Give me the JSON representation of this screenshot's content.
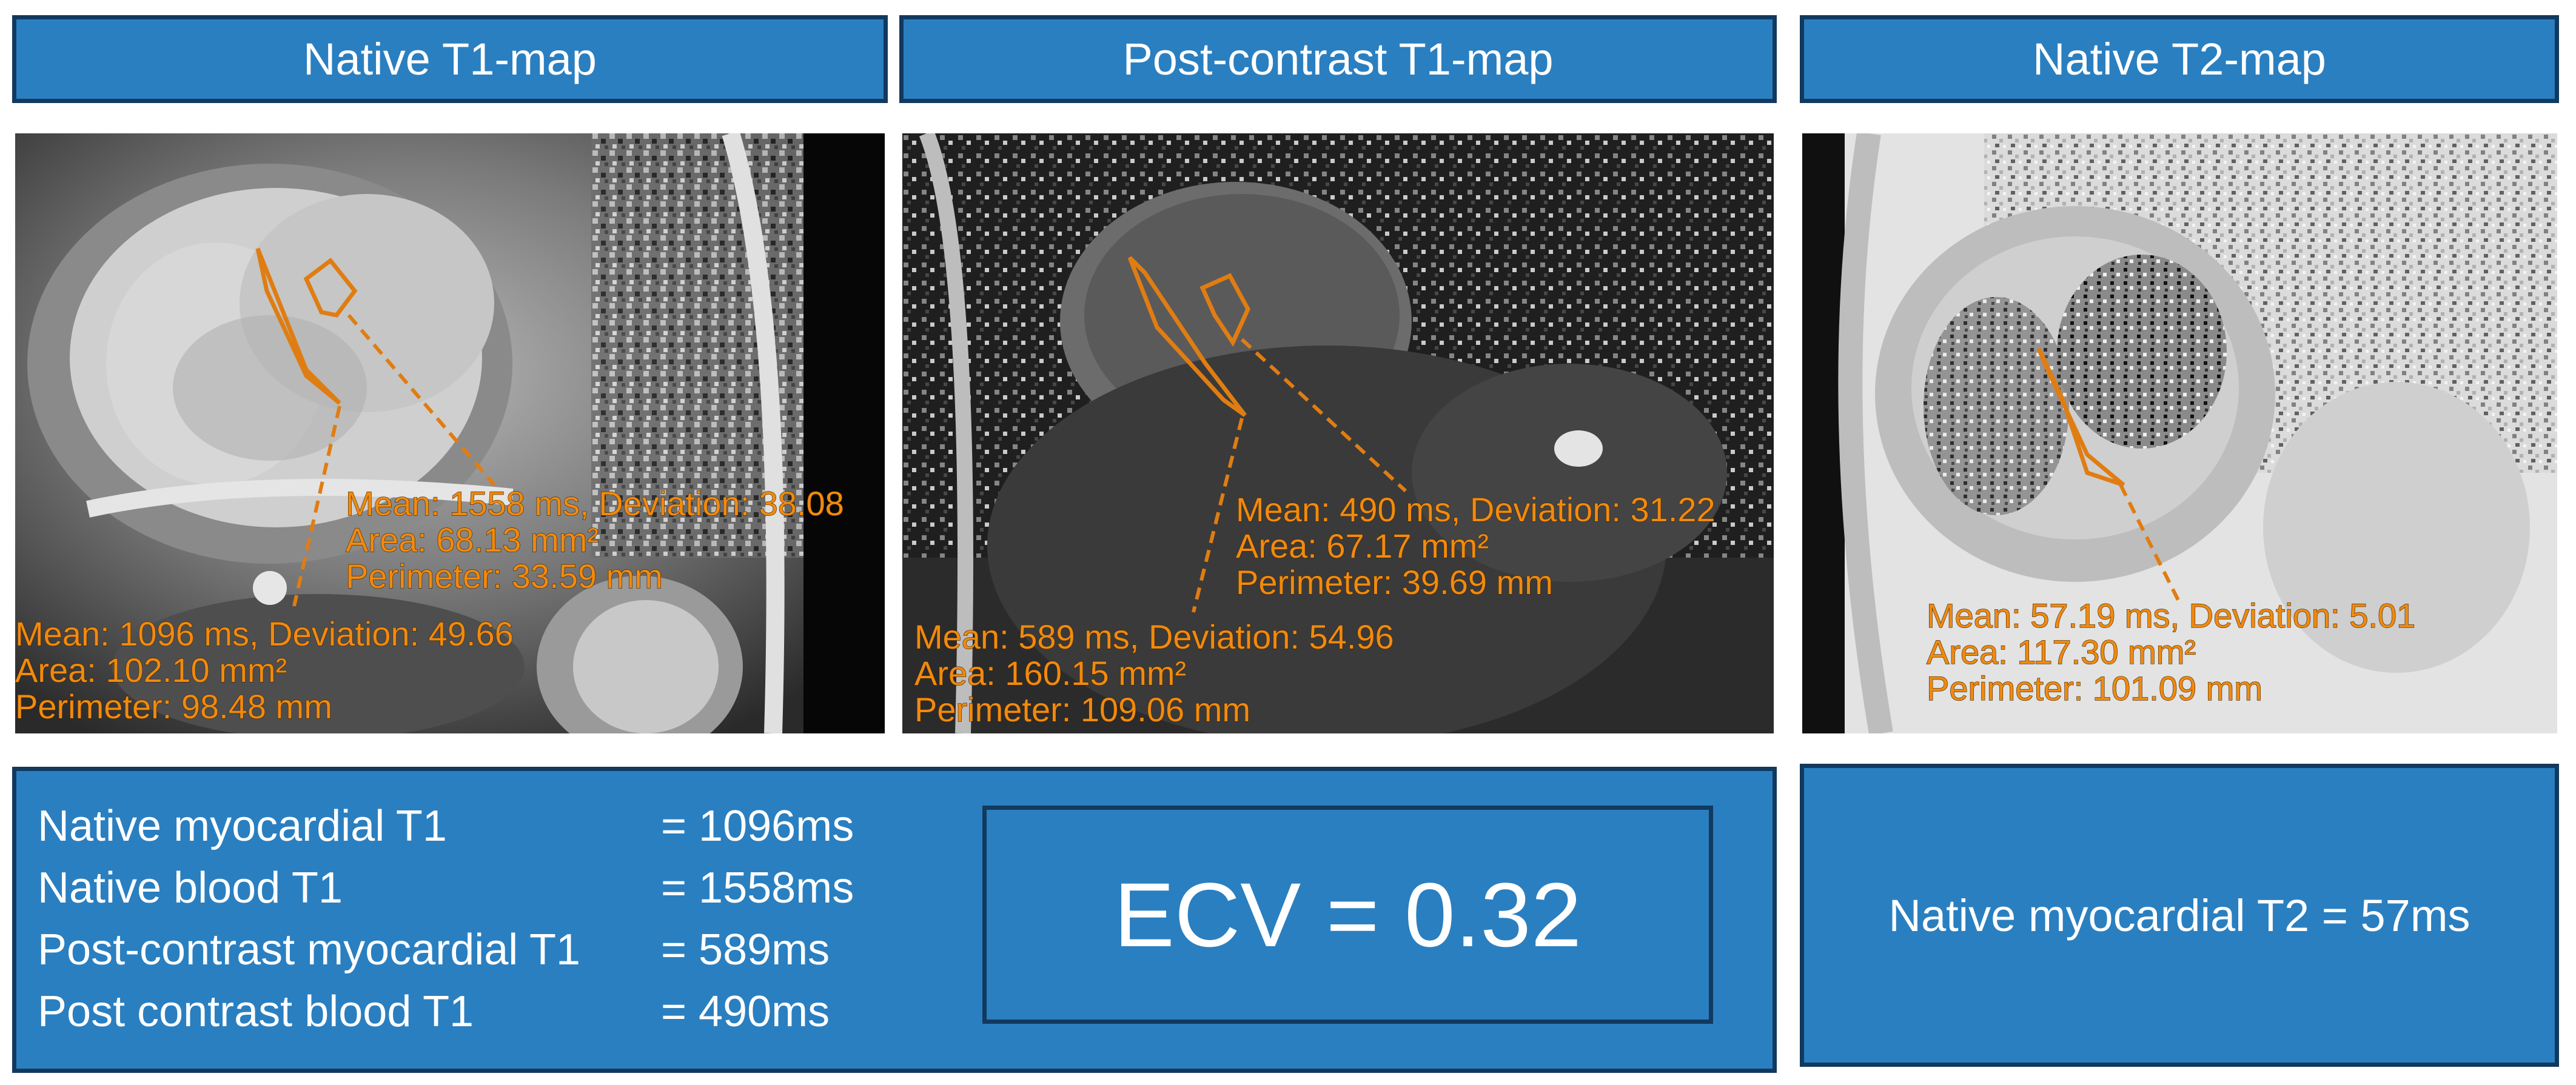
{
  "headers": {
    "native_t1": "Native T1-map",
    "post_t1": "Post-contrast T1-map",
    "native_t2": "Native T2-map"
  },
  "panels": {
    "native_t1": {
      "roi_blood": {
        "line1": "Mean: 1558 ms, Deviation: 38.08",
        "line2": "Area: 68.13 mm²",
        "line3": "Perimeter: 33.59 mm"
      },
      "roi_myo": {
        "line1": "Mean: 1096 ms, Deviation: 49.66",
        "line2": "Area: 102.10 mm²",
        "line3": "Perimeter: 98.48 mm"
      }
    },
    "post_t1": {
      "roi_blood": {
        "line1": "Mean: 490 ms, Deviation: 31.22",
        "line2": "Area: 67.17 mm²",
        "line3": "Perimeter: 39.69 mm"
      },
      "roi_myo": {
        "line1": "Mean: 589 ms, Deviation: 54.96",
        "line2": "Area: 160.15 mm²",
        "line3": "Perimeter: 109.06 mm"
      }
    },
    "native_t2": {
      "roi_myo": {
        "line1": "Mean: 57.19 ms, Deviation: 5.01",
        "line2": "Area: 117.30 mm²",
        "line3": "Perimeter: 101.09 mm"
      }
    }
  },
  "results": {
    "rows": [
      {
        "label": "Native myocardial T1",
        "value": "= 1096ms"
      },
      {
        "label": "Native blood T1",
        "value": "= 1558ms"
      },
      {
        "label": "Post-contrast myocardial T1",
        "value": "= 589ms"
      },
      {
        "label": "Post contrast blood T1",
        "value": "= 490ms"
      }
    ],
    "ecv": "ECV = 0.32",
    "t2": "Native myocardial T2 = 57ms"
  },
  "colors": {
    "header_fill": "#2a7fc0",
    "header_border": "#12395e",
    "annotation": "#f08a10"
  }
}
